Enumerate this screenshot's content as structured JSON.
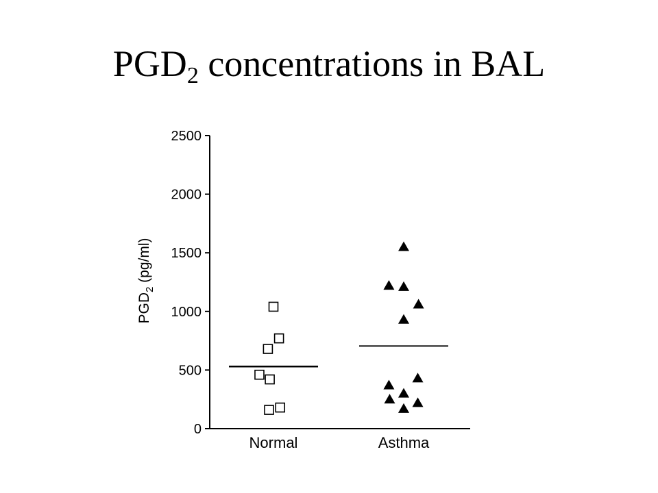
{
  "slide": {
    "title_main": "PGD",
    "title_sub": "2",
    "title_rest": " concentrations in BAL"
  },
  "chart_data": {
    "type": "scatter",
    "title": "PGD2 concentrations in BAL",
    "ylabel_main": "PGD",
    "ylabel_sub": "2",
    "ylabel_rest": " (pg/ml)",
    "ylim": [
      0,
      2500
    ],
    "yticks": [
      0,
      500,
      1000,
      1500,
      2000,
      2500
    ],
    "categories": [
      "Normal",
      "Asthma"
    ],
    "grid": false,
    "series": [
      {
        "category": "Normal",
        "marker": "open-square",
        "points": [
          {
            "dx": 0.0,
            "y": 1040
          },
          {
            "dx": 0.15,
            "y": 770
          },
          {
            "dx": -0.15,
            "y": 680
          },
          {
            "dx": -0.38,
            "y": 460
          },
          {
            "dx": -0.1,
            "y": 420
          },
          {
            "dx": 0.18,
            "y": 180
          },
          {
            "dx": -0.12,
            "y": 160
          }
        ],
        "mean": 530
      },
      {
        "category": "Asthma",
        "marker": "filled-triangle",
        "points": [
          {
            "dx": 0.0,
            "y": 1550
          },
          {
            "dx": -0.4,
            "y": 1220
          },
          {
            "dx": 0.0,
            "y": 1210
          },
          {
            "dx": 0.4,
            "y": 1060
          },
          {
            "dx": 0.0,
            "y": 930
          },
          {
            "dx": -0.4,
            "y": 370
          },
          {
            "dx": 0.38,
            "y": 430
          },
          {
            "dx": 0.0,
            "y": 300
          },
          {
            "dx": -0.38,
            "y": 250
          },
          {
            "dx": 0.38,
            "y": 220
          },
          {
            "dx": 0.0,
            "y": 170
          }
        ],
        "mean": 705
      }
    ]
  }
}
